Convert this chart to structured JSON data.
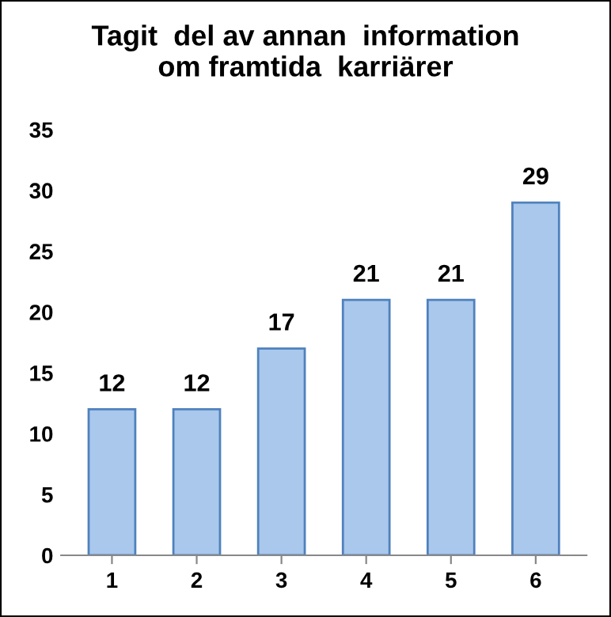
{
  "chart_data": {
    "type": "bar",
    "title": "Tagit  del av annan  information\nom framtida  karriärer",
    "categories": [
      "1",
      "2",
      "3",
      "4",
      "5",
      "6"
    ],
    "values": [
      12,
      12,
      17,
      21,
      21,
      29
    ],
    "color": "#a9c8ec",
    "ylim": [
      0,
      35
    ],
    "yticks": [
      0,
      5,
      10,
      15,
      20,
      25,
      30,
      35
    ],
    "data_labels": true,
    "grid": false,
    "legend": false
  }
}
